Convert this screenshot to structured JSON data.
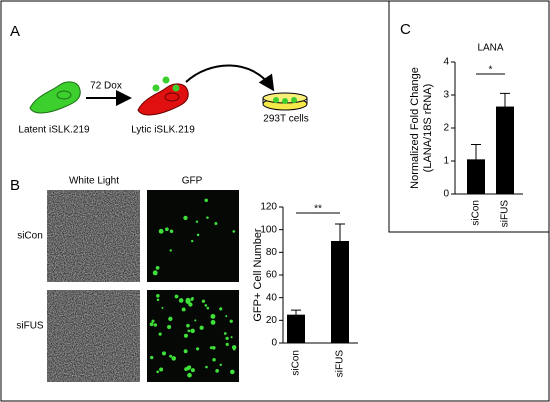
{
  "panels": [
    "A",
    "B",
    "C"
  ],
  "diagram": {
    "latent": "Latent iSLK.219",
    "treatment": "72 Dox",
    "lytic": "Lytic iSLK.219",
    "target": "293T cells"
  },
  "images": {
    "columns": [
      "White Light",
      "GFP"
    ],
    "rows": [
      "siCon",
      "siFUS"
    ]
  },
  "chart_data": [
    {
      "type": "bar",
      "y_label": [
        "GFP+ Cell Number"
      ],
      "categories": [
        "siCon",
        "siFUS"
      ],
      "values": [
        25,
        90
      ],
      "errors": [
        4,
        15
      ],
      "color": "#000000",
      "ylim": [
        0,
        120
      ],
      "yticks": [
        0,
        20,
        40,
        60,
        80,
        100,
        120
      ],
      "significance": "**"
    },
    {
      "type": "bar",
      "title": "LANA",
      "y_label": [
        "Normalized Fold Change",
        "(LANA/18S rRNA)"
      ],
      "categories": [
        "siCon",
        "siFUS"
      ],
      "values": [
        1.05,
        2.65
      ],
      "errors": [
        0.45,
        0.4
      ],
      "color": "#000000",
      "ylim": [
        0,
        4
      ],
      "yticks": [
        0,
        1,
        2,
        3,
        4
      ],
      "significance": "*"
    }
  ]
}
